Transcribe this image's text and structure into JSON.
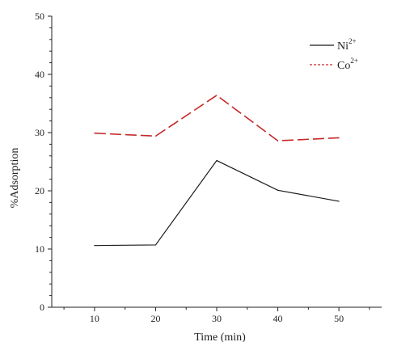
{
  "chart_data": {
    "type": "line",
    "title": "",
    "xlabel": "Time (min)",
    "ylabel": "%Adsorption",
    "x": [
      10,
      20,
      30,
      40,
      50
    ],
    "xlim": [
      3,
      57
    ],
    "ylim": [
      0,
      50
    ],
    "x_ticks": [
      "10",
      "20",
      "30",
      "40",
      "50"
    ],
    "y_ticks": [
      "0",
      "10",
      "20",
      "30",
      "40",
      "50"
    ],
    "grid": false,
    "legend_position": "top-right",
    "series": [
      {
        "name": "Ni",
        "sup": "2+",
        "values": [
          10.6,
          10.7,
          25.2,
          20.1,
          18.2
        ],
        "color": "#1a1a1a",
        "style": "solid"
      },
      {
        "name": "Co",
        "sup": "2+",
        "values": [
          29.9,
          29.4,
          36.4,
          28.6,
          29.1
        ],
        "color": "#c62828",
        "style": "dashed"
      }
    ]
  }
}
